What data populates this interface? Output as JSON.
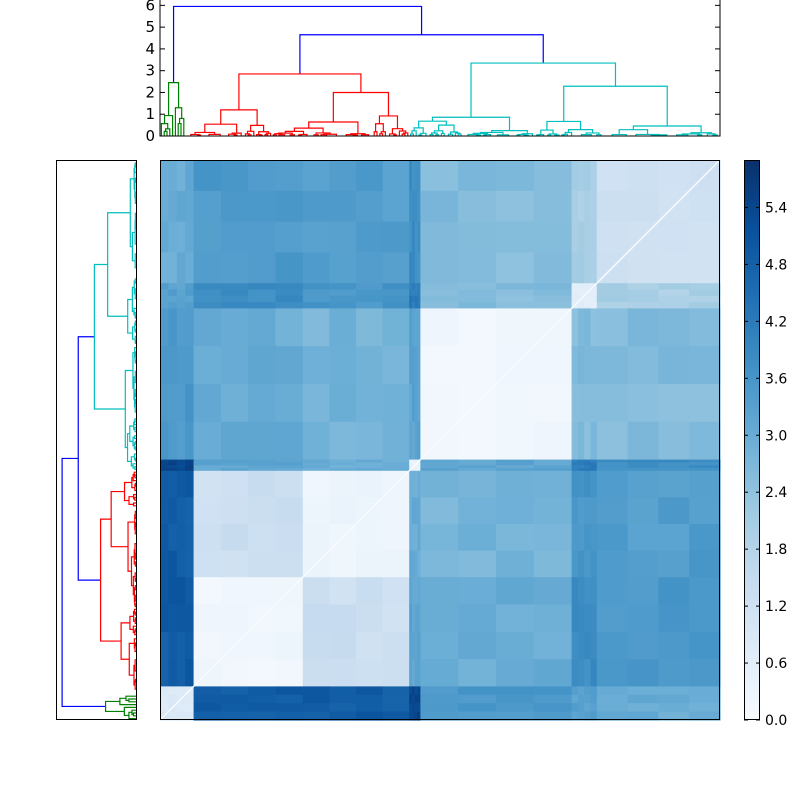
{
  "chart_data": [
    {
      "type": "dendrogram",
      "name": "top-dendrogram",
      "orientation": "top",
      "ylim": [
        0,
        6.2
      ],
      "yticks": [
        0,
        1,
        2,
        3,
        4,
        5,
        6
      ],
      "colors": {
        "root": "#0000ff",
        "green": "#008000",
        "red": "#ff0000",
        "cyan": "#00bfbf"
      },
      "clusters": [
        {
          "color": "green",
          "height": 2.45,
          "share": 0.045
        },
        {
          "color": "red",
          "height": 2.85,
          "share": 0.4
        },
        {
          "color": "cyan",
          "height": 3.35,
          "share": 0.555
        }
      ],
      "merges": [
        {
          "left_cluster": "red",
          "right_cluster": "cyan",
          "height": 4.65,
          "color": "root"
        },
        {
          "left_cluster": "green",
          "right_cluster": "red+cyan",
          "height": 5.95,
          "color": "root"
        }
      ]
    },
    {
      "type": "dendrogram",
      "name": "left-dendrogram",
      "orientation": "left",
      "same_tree_as": "top-dendrogram",
      "order_top_to_bottom": [
        "cyan",
        "red",
        "green"
      ]
    },
    {
      "type": "heatmap",
      "name": "distance-matrix",
      "colormap": "Blues",
      "vmin": 0.0,
      "vmax": 5.9,
      "x_order": [
        "green",
        "red-a",
        "red-b",
        "red-c",
        "cyan-a",
        "cyan-b",
        "cyan-c"
      ],
      "y_order_top_to_bottom": [
        "cyan-c",
        "cyan-b",
        "cyan-a",
        "red-c",
        "red-b",
        "red-a",
        "green"
      ],
      "block_shares": [
        0.06,
        0.195,
        0.19,
        0.02,
        0.27,
        0.045,
        0.22
      ],
      "block_values": [
        [
          0.8,
          4.9,
          4.9,
          5.4,
          3.5,
          3.3,
          3.0
        ],
        [
          4.9,
          0.2,
          1.3,
          3.2,
          3.0,
          3.8,
          3.5
        ],
        [
          4.9,
          1.3,
          0.3,
          3.0,
          2.8,
          3.6,
          3.4
        ],
        [
          5.4,
          3.2,
          3.0,
          0.4,
          3.2,
          4.2,
          3.8
        ],
        [
          3.5,
          3.0,
          2.8,
          3.2,
          0.2,
          2.6,
          2.6
        ],
        [
          3.3,
          3.8,
          3.6,
          4.2,
          2.6,
          0.6,
          2.0
        ],
        [
          3.0,
          3.5,
          3.4,
          3.8,
          2.6,
          2.0,
          1.2
        ]
      ]
    },
    {
      "type": "colorbar",
      "name": "colorbar",
      "colormap": "Blues",
      "range": [
        0.0,
        5.9
      ],
      "ticks": [
        "0.0",
        "0.6",
        "1.2",
        "1.8",
        "2.4",
        "3.0",
        "3.6",
        "4.2",
        "4.8",
        "5.4"
      ]
    }
  ]
}
